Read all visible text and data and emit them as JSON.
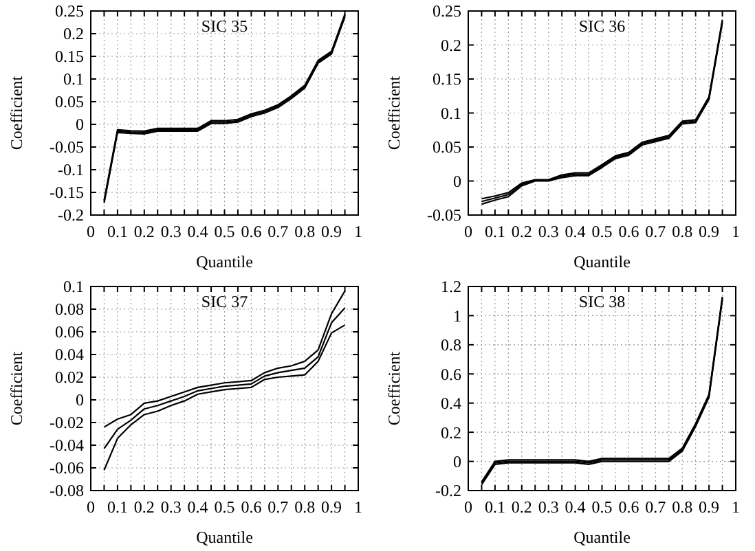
{
  "chart_data": [
    {
      "type": "line",
      "title": "SIC 35",
      "xlabel": "Quantile",
      "ylabel": "Coefficient",
      "x": [
        0.05,
        0.1,
        0.15,
        0.2,
        0.25,
        0.3,
        0.35,
        0.4,
        0.45,
        0.5,
        0.55,
        0.6,
        0.65,
        0.7,
        0.75,
        0.8,
        0.85,
        0.9,
        0.95
      ],
      "xlim": [
        0,
        1
      ],
      "xticks": [
        0,
        {
          "value": 0.05,
          "label": null
        },
        0.1,
        {
          "value": 0.15,
          "label": null
        },
        0.2,
        {
          "value": 0.25,
          "label": null
        },
        0.3,
        {
          "value": 0.35,
          "label": null
        },
        0.4,
        {
          "value": 0.45,
          "label": null
        },
        0.5,
        {
          "value": 0.55,
          "label": null
        },
        0.6,
        {
          "value": 0.65,
          "label": null
        },
        0.7,
        {
          "value": 0.75,
          "label": null
        },
        0.8,
        {
          "value": 0.85,
          "label": null
        },
        0.9,
        {
          "value": 0.95,
          "label": null
        },
        1
      ],
      "ylim": [
        -0.2,
        0.25
      ],
      "yticks": [
        -0.2,
        -0.15,
        -0.1,
        -0.05,
        0,
        0.05,
        0.1,
        0.15,
        0.2,
        0.25
      ],
      "grid": true,
      "series": [
        {
          "color": "#000000",
          "values": [
            -0.173,
            -0.018,
            -0.02,
            -0.021,
            -0.015,
            -0.015,
            -0.015,
            -0.015,
            0.002,
            0.002,
            0.005,
            0.017,
            0.025,
            0.037,
            0.057,
            0.08,
            0.135,
            0.155,
            0.237
          ]
        },
        {
          "color": "#000000",
          "values": [
            -0.17,
            -0.015,
            -0.017,
            -0.018,
            -0.012,
            -0.012,
            -0.012,
            -0.012,
            0.005,
            0.005,
            0.008,
            0.02,
            0.028,
            0.04,
            0.06,
            0.083,
            0.138,
            0.158,
            0.24
          ]
        },
        {
          "color": "#000000",
          "values": [
            -0.167,
            -0.012,
            -0.014,
            -0.015,
            -0.009,
            -0.009,
            -0.009,
            -0.009,
            0.008,
            0.008,
            0.011,
            0.023,
            0.031,
            0.043,
            0.063,
            0.086,
            0.141,
            0.161,
            0.243
          ]
        }
      ]
    },
    {
      "type": "line",
      "title": "SIC 36",
      "xlabel": "Quantile",
      "ylabel": "Coefficient",
      "x": [
        0.05,
        0.1,
        0.15,
        0.2,
        0.25,
        0.3,
        0.35,
        0.4,
        0.45,
        0.5,
        0.55,
        0.6,
        0.65,
        0.7,
        0.75,
        0.8,
        0.85,
        0.9,
        0.95
      ],
      "xlim": [
        0,
        1
      ],
      "xticks": [
        0,
        {
          "value": 0.05,
          "label": null
        },
        0.1,
        {
          "value": 0.15,
          "label": null
        },
        0.2,
        {
          "value": 0.25,
          "label": null
        },
        0.3,
        {
          "value": 0.35,
          "label": null
        },
        0.4,
        {
          "value": 0.45,
          "label": null
        },
        0.5,
        {
          "value": 0.55,
          "label": null
        },
        0.6,
        {
          "value": 0.65,
          "label": null
        },
        0.7,
        {
          "value": 0.75,
          "label": null
        },
        0.8,
        {
          "value": 0.85,
          "label": null
        },
        0.9,
        {
          "value": 0.95,
          "label": null
        },
        1
      ],
      "ylim": [
        -0.05,
        0.25
      ],
      "yticks": [
        -0.05,
        0,
        0.05,
        0.1,
        0.15,
        0.2,
        0.25
      ],
      "grid": true,
      "series": [
        {
          "color": "#000000",
          "values": [
            -0.034,
            -0.028,
            -0.023,
            -0.007,
            0,
            0,
            0.005,
            0.008,
            0.008,
            0.02,
            0.033,
            0.038,
            0.053,
            0.058,
            0.063,
            0.084,
            0.086,
            0.12,
            0.233
          ]
        },
        {
          "color": "#000000",
          "values": [
            -0.03,
            -0.025,
            -0.02,
            -0.005,
            0.001,
            0.001,
            0.007,
            0.01,
            0.01,
            0.022,
            0.035,
            0.04,
            0.055,
            0.06,
            0.065,
            0.086,
            0.088,
            0.122,
            0.235
          ]
        },
        {
          "color": "#000000",
          "values": [
            -0.026,
            -0.022,
            -0.017,
            -0.003,
            0.002,
            0.002,
            0.009,
            0.012,
            0.012,
            0.024,
            0.037,
            0.042,
            0.057,
            0.062,
            0.067,
            0.088,
            0.09,
            0.124,
            0.237
          ]
        }
      ]
    },
    {
      "type": "line",
      "title": "SIC 37",
      "xlabel": "Quantile",
      "ylabel": "Coefficient",
      "x": [
        0.05,
        0.1,
        0.15,
        0.2,
        0.25,
        0.3,
        0.35,
        0.4,
        0.45,
        0.5,
        0.55,
        0.6,
        0.65,
        0.7,
        0.75,
        0.8,
        0.85,
        0.9,
        0.95
      ],
      "xlim": [
        0,
        1
      ],
      "xticks": [
        0,
        {
          "value": 0.05,
          "label": null
        },
        0.1,
        {
          "value": 0.15,
          "label": null
        },
        0.2,
        {
          "value": 0.25,
          "label": null
        },
        0.3,
        {
          "value": 0.35,
          "label": null
        },
        0.4,
        {
          "value": 0.45,
          "label": null
        },
        0.5,
        {
          "value": 0.55,
          "label": null
        },
        0.6,
        {
          "value": 0.65,
          "label": null
        },
        0.7,
        {
          "value": 0.75,
          "label": null
        },
        0.8,
        {
          "value": 0.85,
          "label": null
        },
        0.9,
        {
          "value": 0.95,
          "label": null
        },
        1
      ],
      "ylim": [
        -0.08,
        0.1
      ],
      "yticks": [
        -0.08,
        -0.06,
        -0.04,
        -0.02,
        0,
        0.02,
        0.04,
        0.06,
        0.08,
        0.1
      ],
      "grid": true,
      "series": [
        {
          "color": "#000000",
          "values": [
            -0.062,
            -0.034,
            -0.022,
            -0.013,
            -0.01,
            -0.005,
            -0.001,
            0.005,
            0.007,
            0.009,
            0.01,
            0.011,
            0.018,
            0.02,
            0.021,
            0.022,
            0.034,
            0.059,
            0.066
          ]
        },
        {
          "color": "#000000",
          "values": [
            -0.043,
            -0.026,
            -0.018,
            -0.008,
            -0.005,
            -0.001,
            0.003,
            0.008,
            0.01,
            0.012,
            0.013,
            0.014,
            0.021,
            0.024,
            0.026,
            0.028,
            0.038,
            0.068,
            0.081
          ]
        },
        {
          "color": "#000000",
          "values": [
            -0.024,
            -0.017,
            -0.013,
            -0.003,
            -0.001,
            0.003,
            0.007,
            0.011,
            0.013,
            0.015,
            0.016,
            0.017,
            0.024,
            0.028,
            0.03,
            0.034,
            0.044,
            0.076,
            0.096
          ]
        }
      ]
    },
    {
      "type": "line",
      "title": "SIC 38",
      "xlabel": "Quantile",
      "ylabel": "Coefficient",
      "x": [
        0.05,
        0.1,
        0.15,
        0.2,
        0.25,
        0.3,
        0.35,
        0.4,
        0.45,
        0.5,
        0.55,
        0.6,
        0.65,
        0.7,
        0.75,
        0.8,
        0.85,
        0.9,
        0.95
      ],
      "xlim": [
        0,
        1
      ],
      "xticks": [
        0,
        {
          "value": 0.05,
          "label": null
        },
        0.1,
        {
          "value": 0.15,
          "label": null
        },
        0.2,
        {
          "value": 0.25,
          "label": null
        },
        0.3,
        {
          "value": 0.35,
          "label": null
        },
        0.4,
        {
          "value": 0.45,
          "label": null
        },
        0.5,
        {
          "value": 0.55,
          "label": null
        },
        0.6,
        {
          "value": 0.65,
          "label": null
        },
        0.7,
        {
          "value": 0.75,
          "label": null
        },
        0.8,
        {
          "value": 0.85,
          "label": null
        },
        0.9,
        {
          "value": 0.95,
          "label": null
        },
        1
      ],
      "ylim": [
        -0.2,
        1.2
      ],
      "yticks": [
        -0.2,
        0,
        0.2,
        0.4,
        0.6,
        0.8,
        1,
        1.2
      ],
      "grid": true,
      "series": [
        {
          "color": "#000000",
          "values": [
            -0.16,
            -0.02,
            -0.01,
            -0.01,
            -0.01,
            -0.01,
            -0.01,
            -0.01,
            -0.02,
            0,
            0,
            0,
            0,
            0,
            0,
            0.07,
            0.24,
            0.44,
            1.11
          ]
        },
        {
          "color": "#000000",
          "values": [
            -0.15,
            -0.01,
            0,
            0,
            0,
            0,
            0,
            0,
            -0.01,
            0.01,
            0.01,
            0.01,
            0.01,
            0.01,
            0.01,
            0.08,
            0.25,
            0.45,
            1.12
          ]
        },
        {
          "color": "#000000",
          "values": [
            -0.14,
            0,
            0.01,
            0.01,
            0.01,
            0.01,
            0.01,
            0.01,
            0,
            0.02,
            0.02,
            0.02,
            0.02,
            0.02,
            0.02,
            0.09,
            0.26,
            0.46,
            1.13
          ]
        }
      ]
    }
  ]
}
